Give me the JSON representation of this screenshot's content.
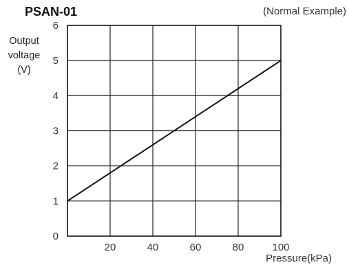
{
  "chart_data": {
    "type": "line",
    "title": "PSAN-01",
    "subtitle": "(Normal Example)",
    "ylabel": [
      "Output",
      "voltage",
      "(V)"
    ],
    "xlabel": "Pressure(kPa)",
    "xlim": [
      0,
      100
    ],
    "ylim": [
      0,
      6
    ],
    "x_ticks": [
      20,
      40,
      60,
      80,
      100
    ],
    "y_ticks": [
      0,
      1,
      2,
      3,
      4,
      5,
      6
    ],
    "grid": true,
    "series": [
      {
        "x": [
          0,
          100
        ],
        "y": [
          1,
          5
        ]
      }
    ]
  }
}
